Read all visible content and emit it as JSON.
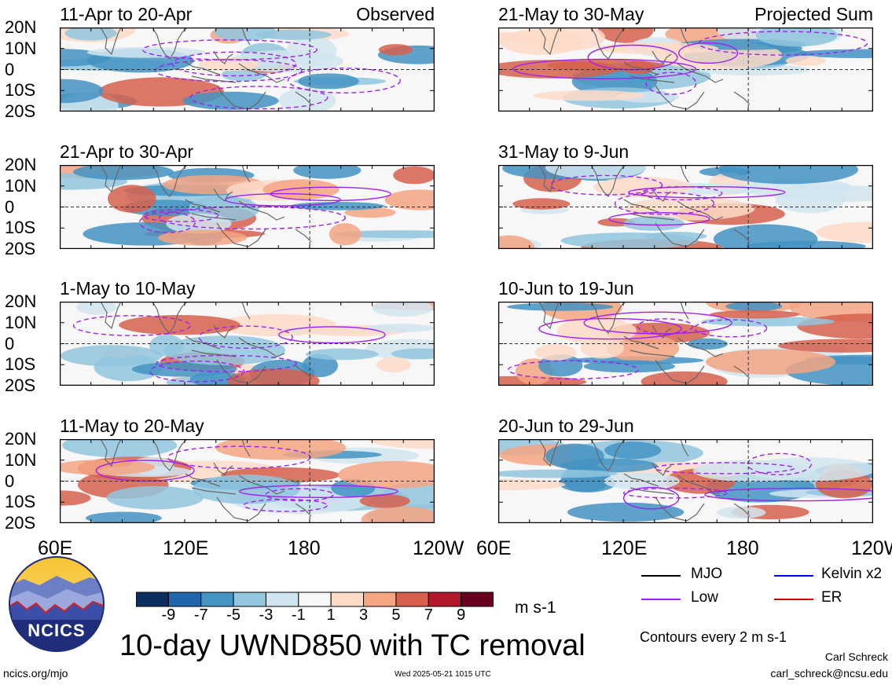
{
  "panels": [
    {
      "title": "11-Apr to 20-Apr",
      "tag": "Observed"
    },
    {
      "title": "21-Apr to 30-Apr",
      "tag": ""
    },
    {
      "title": "1-May to 10-May",
      "tag": ""
    },
    {
      "title": "11-May to 20-May",
      "tag": ""
    },
    {
      "title": "21-May to 30-May",
      "tag": "Projected Sum"
    },
    {
      "title": "31-May to 9-Jun",
      "tag": ""
    },
    {
      "title": "10-Jun to 19-Jun",
      "tag": ""
    },
    {
      "title": "20-Jun to 29-Jun",
      "tag": ""
    }
  ],
  "lat_labels": [
    "20N",
    "10N",
    "0",
    "10S",
    "20S"
  ],
  "lon_labels": [
    "60E",
    "120E",
    "180",
    "120W"
  ],
  "colorbar": {
    "colors": [
      "#0b2e5e",
      "#2166ac",
      "#4393c3",
      "#92c5de",
      "#d1e5f0",
      "#f7f7f7",
      "#fddbc7",
      "#f4a582",
      "#d6604d",
      "#b2182b",
      "#67001f"
    ],
    "ticks": [
      "-9",
      "-7",
      "-5",
      "-3",
      "-1",
      "1",
      "3",
      "5",
      "7",
      "9"
    ],
    "units": "m s-1"
  },
  "legend": {
    "items": [
      {
        "label": "MJO",
        "color": "#000000"
      },
      {
        "label": "Kelvin x2",
        "color": "#0000ff"
      },
      {
        "label": "Low",
        "color": "#a020f0"
      },
      {
        "label": "ER",
        "color": "#cc0000"
      }
    ],
    "contour_note": "Contours every 2 m s-1"
  },
  "title": "10-day UWND850 with TC removal",
  "logo_text": "NCICS",
  "footer": {
    "url": "ncics.org/mjo",
    "timestamp": "Wed 2025-05-21 1015 UTC",
    "author": "Carl Schreck",
    "email": "carl_schreck@ncsu.edu"
  }
}
